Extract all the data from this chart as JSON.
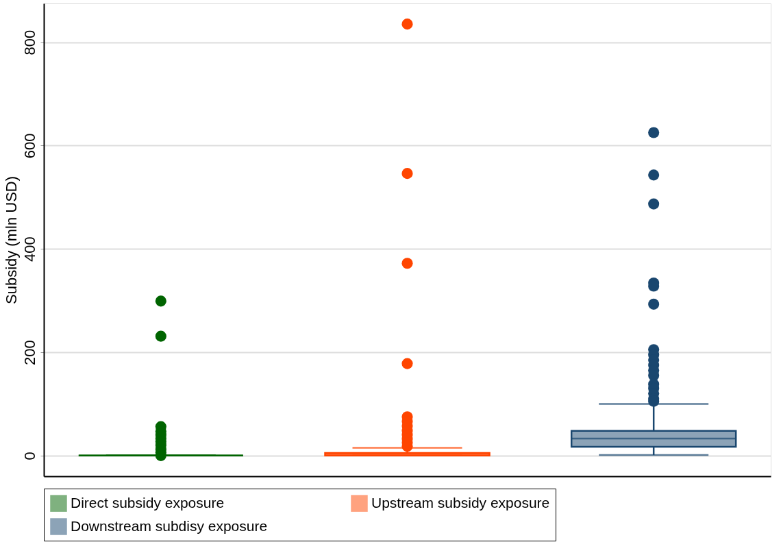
{
  "chart_data": {
    "type": "box",
    "ylabel": "Subsidy (mln USD)",
    "categories": [
      null,
      null,
      null
    ],
    "ylim": [
      -40,
      875
    ],
    "yticks": [
      0,
      200,
      400,
      600,
      800
    ],
    "grid": "y",
    "legend": "bottom",
    "tick_labels": "y",
    "marker": "circle",
    "series": [
      {
        "name": "Direct subsidy exposure",
        "color": "#006400",
        "boxes": [
          {
            "low": 0,
            "q1": 0,
            "median": 0,
            "q3": 0,
            "high": 0,
            "outliers": [
              299,
              231,
              56,
              47,
              40,
              33,
              27,
              20,
              12,
              6,
              0
            ]
          },
          null,
          null
        ]
      },
      {
        "name": "Upstream subsidy exposure",
        "color": "#ff4500",
        "boxes": [
          null,
          {
            "low": 0,
            "q1": 0,
            "median": 3,
            "q3": 5,
            "high": 15,
            "outliers": [
              835,
              546,
              372,
              178,
              75,
              66,
              57,
              48,
              40,
              32,
              25,
              18
            ]
          },
          null
        ]
      },
      {
        "name": "Downstream subdisy exposure",
        "color": "#1a476f",
        "boxes": [
          null,
          null,
          {
            "low": 1,
            "q1": 17,
            "median": 33,
            "q3": 48,
            "high": 100,
            "outliers": [
              625,
              543,
              487,
              334,
              328,
              293,
              205,
              195,
              185,
              175,
              165,
              155,
              138,
              130,
              120,
              110,
              105
            ]
          }
        ]
      }
    ]
  }
}
